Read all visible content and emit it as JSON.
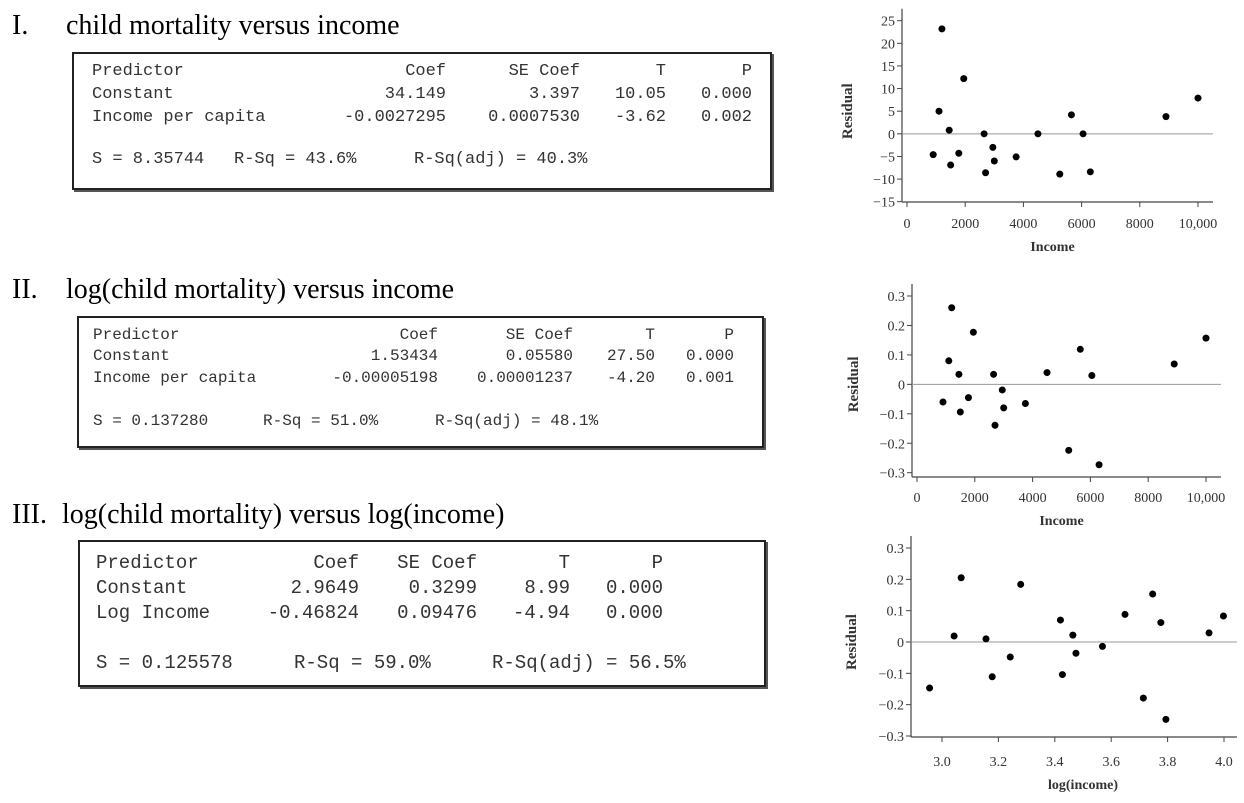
{
  "sections": [
    {
      "numeral": "I.",
      "title": "child mortality versus income",
      "headers": [
        "Predictor",
        "Coef",
        "SE Coef",
        "T",
        "P"
      ],
      "rows": [
        [
          "Constant",
          "34.149",
          "3.397",
          "10.05",
          "0.000"
        ],
        [
          "Income per capita",
          "-0.0027295",
          "0.0007530",
          "-3.62",
          "0.002"
        ]
      ],
      "summary": {
        "s": "S = 8.35744",
        "rsq": "R-Sq = 43.6%",
        "rsq_adj": "R-Sq(adj) = 40.3%"
      }
    },
    {
      "numeral": "II.",
      "title": "log(child mortality) versus income",
      "headers": [
        "Predictor",
        "Coef",
        "SE Coef",
        "T",
        "P"
      ],
      "rows": [
        [
          "Constant",
          "1.53434",
          "0.05580",
          "27.50",
          "0.000"
        ],
        [
          "Income per capita",
          "-0.00005198",
          "0.00001237",
          "-4.20",
          "0.001"
        ]
      ],
      "summary": {
        "s": "S = 0.137280",
        "rsq": "R-Sq = 51.0%",
        "rsq_adj": "R-Sq(adj) = 48.1%"
      }
    },
    {
      "numeral": "III.",
      "title": "log(child mortality) versus log(income)",
      "headers": [
        "Predictor",
        "Coef",
        "SE Coef",
        "T",
        "P"
      ],
      "rows": [
        [
          "Constant",
          "2.9649",
          "0.3299",
          "8.99",
          "0.000"
        ],
        [
          "Log Income",
          "-0.46824",
          "0.09476",
          "-4.94",
          "0.000"
        ]
      ],
      "summary": {
        "s": "S = 0.125578",
        "rsq": "R-Sq = 59.0%",
        "rsq_adj": "R-Sq(adj) = 56.5%"
      }
    }
  ],
  "chart_data": [
    {
      "type": "scatter",
      "title": "",
      "xlabel": "Income",
      "ylabel": "Residual",
      "xlim": [
        0,
        10000
      ],
      "ylim": [
        -15,
        25
      ],
      "xticks": [
        "0",
        "2000",
        "4000",
        "6000",
        "8000",
        "10,000"
      ],
      "xtick_values": [
        0,
        2000,
        4000,
        6000,
        8000,
        10000
      ],
      "yticks": [
        "25",
        "20",
        "15",
        "10",
        "5",
        "0",
        "−5",
        "−10",
        "−15"
      ],
      "ytick_values": [
        25,
        20,
        15,
        10,
        5,
        0,
        -5,
        -10,
        -15
      ],
      "reference_line": 0,
      "points": [
        [
          900,
          -4.6
        ],
        [
          1100,
          5
        ],
        [
          1200,
          23.2
        ],
        [
          1450,
          0.8
        ],
        [
          1500,
          -6.9
        ],
        [
          1780,
          -4.3
        ],
        [
          1950,
          12.2
        ],
        [
          2650,
          0
        ],
        [
          2700,
          -8.6
        ],
        [
          2950,
          -3
        ],
        [
          3000,
          -6
        ],
        [
          3750,
          -5.1
        ],
        [
          4500,
          0
        ],
        [
          5250,
          -8.9
        ],
        [
          5650,
          4.2
        ],
        [
          6050,
          0
        ],
        [
          6300,
          -8.4
        ],
        [
          8900,
          3.8
        ],
        [
          10000,
          7.9
        ]
      ]
    },
    {
      "type": "scatter",
      "title": "",
      "xlabel": "Income",
      "ylabel": "Residual",
      "xlim": [
        0,
        10000
      ],
      "ylim": [
        -0.3,
        0.3
      ],
      "xticks": [
        "0",
        "2000",
        "4000",
        "6000",
        "8000",
        "10,000"
      ],
      "xtick_values": [
        0,
        2000,
        4000,
        6000,
        8000,
        10000
      ],
      "yticks": [
        "0.3",
        "0.2",
        "0.1",
        "0",
        "−0.1",
        "−0.2",
        "−0.3"
      ],
      "ytick_values": [
        0.3,
        0.2,
        0.1,
        0,
        -0.1,
        -0.2,
        -0.3
      ],
      "reference_line": 0,
      "points": [
        [
          900,
          -0.06
        ],
        [
          1100,
          0.08
        ],
        [
          1200,
          0.26
        ],
        [
          1450,
          0.034
        ],
        [
          1500,
          -0.094
        ],
        [
          1780,
          -0.045
        ],
        [
          1950,
          0.177
        ],
        [
          2650,
          0.034
        ],
        [
          2700,
          -0.139
        ],
        [
          2950,
          -0.019
        ],
        [
          3000,
          -0.08
        ],
        [
          3750,
          -0.065
        ],
        [
          4500,
          0.04
        ],
        [
          5250,
          -0.224
        ],
        [
          5650,
          0.119
        ],
        [
          6050,
          0.03
        ],
        [
          6300,
          -0.273
        ],
        [
          8900,
          0.069
        ],
        [
          10000,
          0.157
        ]
      ]
    },
    {
      "type": "scatter",
      "title": "",
      "xlabel": "log(income)",
      "ylabel": "Residual",
      "xlim": [
        3.0,
        4.0
      ],
      "ylim": [
        -0.3,
        0.3
      ],
      "xticks": [
        "3.0",
        "3.2",
        "3.4",
        "3.6",
        "3.8",
        "4.0"
      ],
      "xtick_values": [
        3.0,
        3.2,
        3.4,
        3.6,
        3.8,
        4.0
      ],
      "yticks": [
        "0.3",
        "0.2",
        "0.1",
        "0",
        "−0.1",
        "−0.2",
        "−0.3"
      ],
      "ytick_values": [
        0.3,
        0.2,
        0.1,
        0,
        -0.1,
        -0.2,
        -0.3
      ],
      "reference_line": 0,
      "points": [
        [
          2.956,
          -0.147
        ],
        [
          3.043,
          0.019
        ],
        [
          3.068,
          0.205
        ],
        [
          3.156,
          0.01
        ],
        [
          3.178,
          -0.111
        ],
        [
          3.242,
          -0.048
        ],
        [
          3.279,
          0.184
        ],
        [
          3.42,
          0.07
        ],
        [
          3.427,
          -0.104
        ],
        [
          3.464,
          0.022
        ],
        [
          3.475,
          -0.036
        ],
        [
          3.569,
          -0.014
        ],
        [
          3.649,
          0.088
        ],
        [
          3.714,
          -0.179
        ],
        [
          3.747,
          0.153
        ],
        [
          3.776,
          0.062
        ],
        [
          3.794,
          -0.247
        ],
        [
          3.947,
          0.029
        ],
        [
          3.998,
          0.083
        ]
      ]
    }
  ]
}
